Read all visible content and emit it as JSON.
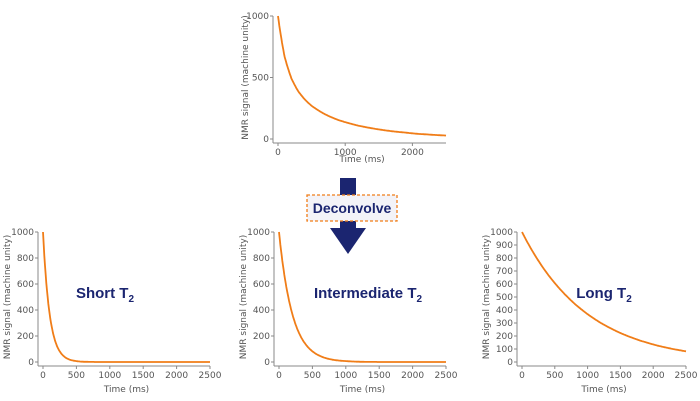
{
  "colors": {
    "curve": "#f07d18",
    "arrow": "#1b2570",
    "annotation": "#1b2570",
    "dashed_border": "#f07d18",
    "axis": "#888888"
  },
  "arrow_label": "Deconvolve",
  "chart_data": [
    {
      "id": "top",
      "type": "line",
      "xlabel": "Time (ms)",
      "ylabel": "NMR signal (machine unity)",
      "xlim": [
        0,
        2500
      ],
      "ylim": [
        0,
        1000
      ],
      "xticks": [
        0,
        1000,
        2000
      ],
      "yticks": [
        0,
        500,
        1000
      ],
      "annotation": "",
      "x": [
        0,
        100,
        200,
        300,
        400,
        500,
        600,
        700,
        800,
        900,
        1000,
        1100,
        1200,
        1300,
        1400,
        1500,
        1600,
        1700,
        1800,
        1900,
        2000,
        2100,
        2200,
        2300,
        2400,
        2500
      ],
      "y": [
        1000,
        666,
        492,
        389,
        321,
        270,
        233,
        201,
        176,
        154,
        137,
        122,
        108,
        97,
        87,
        78,
        70,
        63,
        57,
        52,
        46,
        41,
        38,
        34,
        31,
        28
      ]
    },
    {
      "id": "short",
      "type": "line",
      "xlabel": "Time (ms)",
      "ylabel": "NMR signal (machine unity)",
      "xlim": [
        0,
        2500
      ],
      "ylim": [
        0,
        1000
      ],
      "xticks": [
        0,
        500,
        1000,
        1500,
        2000,
        2500
      ],
      "yticks": [
        0,
        200,
        400,
        600,
        800,
        1000
      ],
      "annotation": "Short T",
      "annotation_sub": "2",
      "x": [
        0,
        100,
        200,
        300,
        400,
        500,
        600,
        700,
        800,
        900,
        1000,
        1100,
        1200,
        1300,
        1400,
        1500,
        1600,
        1700,
        1800,
        1900,
        2000,
        2100,
        2200,
        2300,
        2400,
        2500
      ],
      "y": [
        1000,
        368,
        135,
        50,
        18,
        7,
        2,
        1,
        0,
        0,
        0,
        0,
        0,
        0,
        0,
        0,
        0,
        0,
        0,
        0,
        0,
        0,
        0,
        0,
        0,
        0
      ]
    },
    {
      "id": "intermediate",
      "type": "line",
      "xlabel": "Time (ms)",
      "ylabel": "NMR signal (machine unity)",
      "xlim": [
        0,
        2500
      ],
      "ylim": [
        0,
        1000
      ],
      "xticks": [
        0,
        500,
        1000,
        1500,
        2000,
        2500
      ],
      "yticks": [
        0,
        200,
        400,
        600,
        800,
        1000
      ],
      "annotation": "Intermediate T",
      "annotation_sub": "2",
      "x": [
        0,
        100,
        200,
        300,
        400,
        500,
        600,
        700,
        800,
        900,
        1000,
        1100,
        1200,
        1300,
        1400,
        1500,
        1600,
        1700,
        1800,
        1900,
        2000,
        2100,
        2200,
        2300,
        2400,
        2500
      ],
      "y": [
        1000,
        607,
        368,
        223,
        135,
        82,
        50,
        30,
        18,
        11,
        7,
        4,
        2,
        1,
        1,
        0,
        0,
        0,
        0,
        0,
        0,
        0,
        0,
        0,
        0,
        0
      ]
    },
    {
      "id": "long",
      "type": "line",
      "xlabel": "Time (ms)",
      "ylabel": "NMR signal (machine unity)",
      "xlim": [
        0,
        2500
      ],
      "ylim": [
        0,
        1000
      ],
      "xticks": [
        0,
        500,
        1000,
        1500,
        2000,
        2500
      ],
      "yticks": [
        0,
        100,
        200,
        300,
        400,
        500,
        600,
        700,
        800,
        900,
        1000
      ],
      "annotation": "Long T",
      "annotation_sub": "2",
      "x": [
        0,
        100,
        200,
        300,
        400,
        500,
        600,
        700,
        800,
        900,
        1000,
        1100,
        1200,
        1300,
        1400,
        1500,
        1600,
        1700,
        1800,
        1900,
        2000,
        2100,
        2200,
        2300,
        2400,
        2500
      ],
      "y": [
        1000,
        905,
        819,
        741,
        670,
        607,
        549,
        497,
        449,
        407,
        368,
        333,
        301,
        273,
        247,
        223,
        202,
        183,
        165,
        150,
        135,
        122,
        111,
        100,
        91,
        82
      ]
    }
  ]
}
